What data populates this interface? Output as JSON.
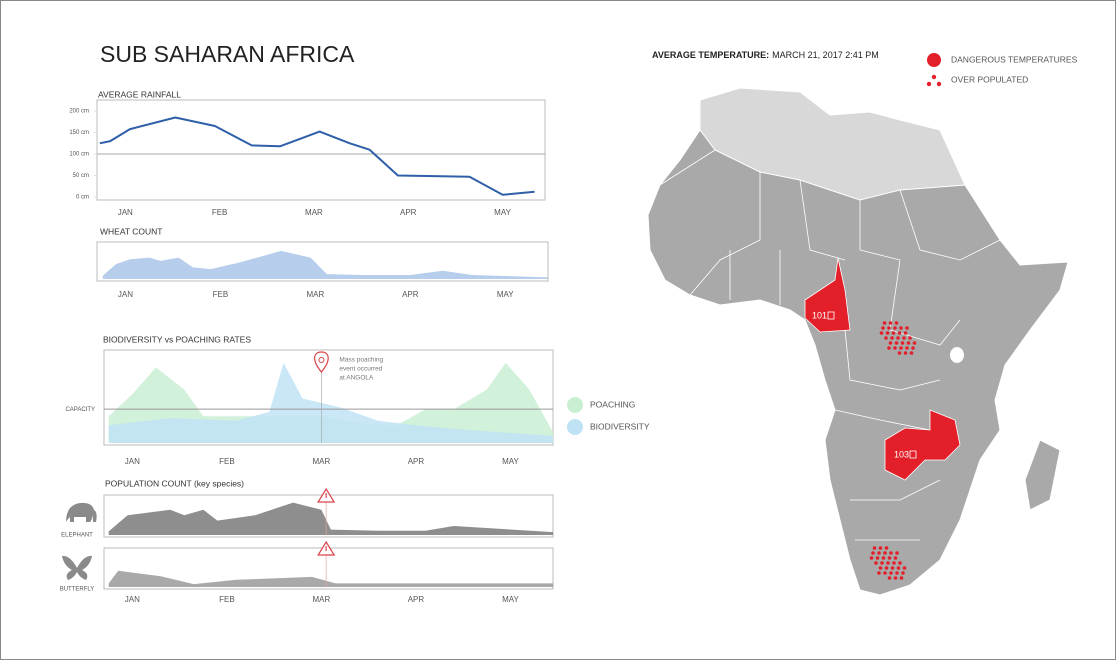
{
  "header": {
    "title": "SUB SAHARAN AFRICA"
  },
  "chart_data": [
    {
      "type": "line",
      "title": "AVERAGE RAINFALL",
      "xlim": [
        0.7,
        5.45
      ],
      "xticks": [
        {
          "value": 1,
          "label": "JAN"
        },
        {
          "value": 2,
          "label": "FEB"
        },
        {
          "value": 3,
          "label": "MAR"
        },
        {
          "value": 4,
          "label": "APR"
        },
        {
          "value": 5,
          "label": "MAY"
        }
      ],
      "ylim": [
        0,
        200
      ],
      "yticks": [
        {
          "value": 0,
          "label": "0 cm"
        },
        {
          "value": 50,
          "label": "50 cm"
        },
        {
          "value": 100,
          "label": "100 cm"
        },
        {
          "value": 150,
          "label": "150 cm"
        },
        {
          "value": 200,
          "label": "200 cm"
        }
      ],
      "grid_values": [
        100
      ],
      "series": [
        {
          "color": "#2f5fa8",
          "x": [
            0.73,
            0.84,
            1.05,
            1.53,
            1.95,
            2.34,
            2.64,
            3.06,
            3.38,
            3.59,
            3.89,
            4.65,
            5.0,
            5.34
          ],
          "values": [
            125,
            130,
            158,
            185,
            165,
            120,
            118,
            152,
            125,
            110,
            50,
            47,
            5,
            12
          ]
        }
      ]
    },
    {
      "type": "area",
      "title": "WHEAT COUNT",
      "xlim": [
        0.7,
        5.45
      ],
      "ylim": [
        0,
        100
      ],
      "xticks": [
        {
          "value": 1,
          "label": "JAN"
        },
        {
          "value": 2,
          "label": "FEB"
        },
        {
          "value": 3,
          "label": "MAR"
        },
        {
          "value": 4,
          "label": "APR"
        },
        {
          "value": 5,
          "label": "MAY"
        }
      ],
      "series": [
        {
          "color": "#a9c4e8",
          "x": [
            0.76,
            0.9,
            1.05,
            1.25,
            1.37,
            1.56,
            1.71,
            1.9,
            2.2,
            2.64,
            2.95,
            3.12,
            3.5,
            4.0,
            4.34,
            4.65,
            5.45
          ],
          "values": [
            10,
            45,
            60,
            65,
            55,
            65,
            35,
            30,
            50,
            85,
            65,
            15,
            12,
            12,
            25,
            12,
            5
          ]
        }
      ]
    },
    {
      "type": "area",
      "title": "BIODIVERSITY vs POACHING RATES",
      "xlim": [
        0.7,
        5.45
      ],
      "ylim": [
        0,
        100
      ],
      "xticks": [
        {
          "value": 1,
          "label": "JAN"
        },
        {
          "value": 2,
          "label": "FEB"
        },
        {
          "value": 3,
          "label": "MAR"
        },
        {
          "value": 4,
          "label": "APR"
        },
        {
          "value": 5,
          "label": "MAY"
        }
      ],
      "reference_line": {
        "value": 38,
        "label": "CAPACITY"
      },
      "annotation": {
        "x": 3.0,
        "text": [
          "Mass poaching",
          "event occurred",
          "at ANGOLA"
        ]
      },
      "series": [
        {
          "name": "POACHING",
          "color": "#c9efd3",
          "x": [
            0.75,
            1.0,
            1.25,
            1.55,
            1.75,
            2.2,
            2.7,
            3.0,
            3.4,
            3.8,
            4.1,
            4.4,
            4.75,
            4.95,
            5.2,
            5.45
          ],
          "values": [
            30,
            55,
            85,
            60,
            30,
            30,
            30,
            30,
            22,
            20,
            38,
            38,
            60,
            90,
            60,
            12
          ]
        },
        {
          "name": "BIODIVERSITY",
          "color": "#bfe3f5",
          "x": [
            0.75,
            1.4,
            2.1,
            2.45,
            2.6,
            2.8,
            3.2,
            3.6,
            4.0,
            4.5,
            5.45
          ],
          "values": [
            20,
            28,
            25,
            35,
            90,
            50,
            40,
            25,
            20,
            15,
            8
          ]
        }
      ]
    },
    {
      "type": "area",
      "title": "POPULATION COUNT (key species)",
      "xlim": [
        0.7,
        5.45
      ],
      "ylim": [
        0,
        100
      ],
      "warning_x": 3.05,
      "series": [
        {
          "name": "ELEPHANT",
          "color": "#7a7a7a",
          "x": [
            0.75,
            0.95,
            1.4,
            1.55,
            1.75,
            1.9,
            2.3,
            2.7,
            3.0,
            3.1,
            3.6,
            4.1,
            4.4,
            5.45
          ],
          "values": [
            10,
            55,
            70,
            55,
            70,
            40,
            55,
            90,
            70,
            15,
            12,
            12,
            25,
            8
          ]
        }
      ]
    },
    {
      "type": "area",
      "xlim": [
        0.7,
        5.45
      ],
      "ylim": [
        0,
        100
      ],
      "warning_x": 3.05,
      "xticks": [
        {
          "value": 1,
          "label": "JAN"
        },
        {
          "value": 2,
          "label": "FEB"
        },
        {
          "value": 3,
          "label": "MAR"
        },
        {
          "value": 4,
          "label": "APR"
        },
        {
          "value": 5,
          "label": "MAY"
        }
      ],
      "series": [
        {
          "name": "BUTTERFLY",
          "color": "#9a9a9a",
          "x": [
            0.75,
            0.85,
            1.3,
            1.65,
            2.1,
            2.9,
            3.15,
            5.45
          ],
          "values": [
            10,
            45,
            30,
            8,
            20,
            28,
            10,
            10
          ]
        }
      ]
    }
  ],
  "map": {
    "title": "AVERAGE TEMPERATURE:",
    "date": "MARCH 21, 2017 2:41 PM",
    "legend": [
      "DANGEROUS TEMPERATURES",
      "OVER POPULATED"
    ],
    "regions": [
      {
        "label": "101"
      },
      {
        "label": "103"
      }
    ]
  }
}
